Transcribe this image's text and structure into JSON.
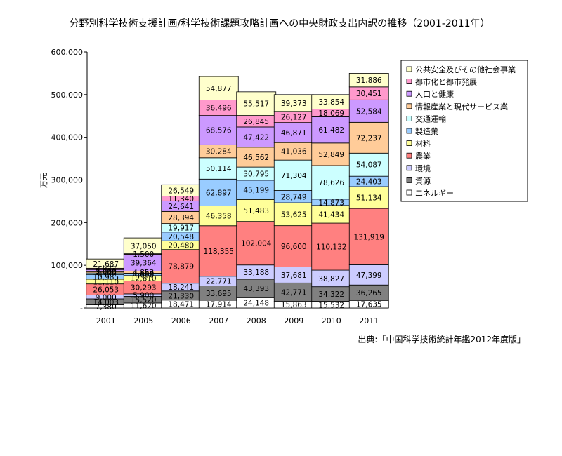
{
  "chart_data": {
    "type": "bar",
    "stacked": true,
    "title": "分野別科学技術支援計画/科学技術課題攻略計画への中央財政支出内訳の推移（2001-2011年）",
    "ylabel": "万元",
    "xlabel": "",
    "ylim": [
      0,
      600000
    ],
    "yticks": [
      "-",
      "100,000",
      "200,000",
      "300,000",
      "400,000",
      "500,000",
      "600,000"
    ],
    "grid": false,
    "legend_position": "right",
    "categories": [
      "2001",
      "2005",
      "2006",
      "2007",
      "2008",
      "2009",
      "2010",
      "2011"
    ],
    "series": [
      {
        "name": "エネルギー",
        "color": "#ffffff",
        "values": [
          7380,
          11620,
          18471,
          17914,
          24148,
          15863,
          15532,
          17635
        ]
      },
      {
        "name": "資源",
        "color": "#808080",
        "values": [
          14003,
          15520,
          21330,
          33695,
          43393,
          42771,
          34322,
          36265
        ]
      },
      {
        "name": "環境",
        "color": "#ccccff",
        "values": [
          9000,
          5900,
          18241,
          22771,
          33188,
          37681,
          38827,
          47399
        ]
      },
      {
        "name": "農業",
        "color": "#ff8080",
        "values": [
          26053,
          30293,
          78879,
          118355,
          102004,
          96600,
          110132,
          131919
        ]
      },
      {
        "name": "材料",
        "color": "#ffff99",
        "values": [
          11110,
          12610,
          20480,
          46358,
          51483,
          53625,
          41434,
          51134
        ]
      },
      {
        "name": "製造業",
        "color": "#99ccff",
        "values": [
          10985,
          4000,
          20548,
          62897,
          45199,
          28749,
          14873,
          24403
        ]
      },
      {
        "name": "交通運輸",
        "color": "#ccffff",
        "values": [
          3500,
          1500,
          19917,
          50114,
          30795,
          71304,
          78626,
          54087
        ]
      },
      {
        "name": "情報産業と現代サービス業",
        "color": "#ffcc99",
        "values": [
          3000,
          4853,
          28394,
          30284,
          46562,
          41036,
          52849,
          72237
        ]
      },
      {
        "name": "人口と健康",
        "color": "#cc99ff",
        "values": [
          5000,
          39364,
          24641,
          68576,
          47422,
          46871,
          61482,
          52584
        ]
      },
      {
        "name": "都市化と都市発展",
        "color": "#ff99cc",
        "values": [
          3077,
          1500,
          11340,
          36496,
          26845,
          26127,
          18069,
          30451
        ]
      },
      {
        "name": "公共安全及びその他社会事業",
        "color": "#ffffcc",
        "values": [
          21687,
          37050,
          26549,
          54877,
          55517,
          39373,
          33854,
          31886
        ]
      }
    ],
    "labels": [
      [
        "7,380",
        "14,003",
        "9,000",
        "26,053",
        "11,110",
        "10,985",
        "3,500",
        "3,000",
        "5,000",
        "3,077",
        "21,687"
      ],
      [
        "11,620",
        "15,520",
        "5,900",
        "30,293",
        "12,610",
        "4,000",
        "1,500",
        "4,853",
        "39,364",
        "1,500",
        "37,050"
      ],
      [
        "18,471",
        "21,330",
        "18,241",
        "78,879",
        "20,480",
        "20,548",
        "19,917",
        "28,394",
        "24,641",
        "11,340",
        "26,549"
      ],
      [
        "17,914",
        "33,695",
        "22,771",
        "118,355",
        "46,358",
        "62,897",
        "50,114",
        "30,284",
        "68,576",
        "36,496",
        "54,877"
      ],
      [
        "24,148",
        "43,393",
        "33,188",
        "102,004",
        "51,483",
        "45,199",
        "30,795",
        "46,562",
        "47,422",
        "26,845",
        "55,517"
      ],
      [
        "15,863",
        "42,771",
        "37,681",
        "96,600",
        "53,625",
        "28,749",
        "71,304",
        "41,036",
        "46,871",
        "26,127",
        "39,373"
      ],
      [
        "15,532",
        "34,322",
        "38,827",
        "110,132",
        "41,434",
        "14,873",
        "78,626",
        "52,849",
        "61,482",
        "18,069",
        "33,854"
      ],
      [
        "17,635",
        "36,265",
        "47,399",
        "131,919",
        "51,134",
        "24,403",
        "54,087",
        "72,237",
        "52,584",
        "30,451",
        "31,886"
      ]
    ]
  },
  "source": "出典:「中国科学技術統計年鑑2012年度版」"
}
